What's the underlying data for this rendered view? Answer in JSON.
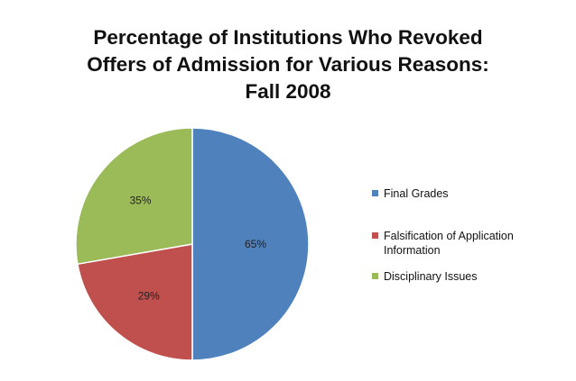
{
  "chart_data": {
    "type": "pie",
    "title_lines": [
      "Percentage of Institutions Who Revoked",
      "Offers of Admission for Various Reasons:",
      "Fall 2008"
    ],
    "categories": [
      "Final Grades",
      "Falsification of Application Information",
      "Disciplinary Issues"
    ],
    "legend_labels": [
      [
        "Final Grades"
      ],
      [
        "Falsification of Application",
        "Information"
      ],
      [
        "Disciplinary Issues"
      ]
    ],
    "values": [
      65,
      29,
      35
    ],
    "slice_fractions": [
      0.5,
      0.2225,
      0.2775
    ],
    "data_labels": [
      "65%",
      "29%",
      "35%"
    ],
    "colors": [
      "#4F81BD",
      "#C0504D",
      "#9BBB59"
    ],
    "legend_position": "right"
  }
}
